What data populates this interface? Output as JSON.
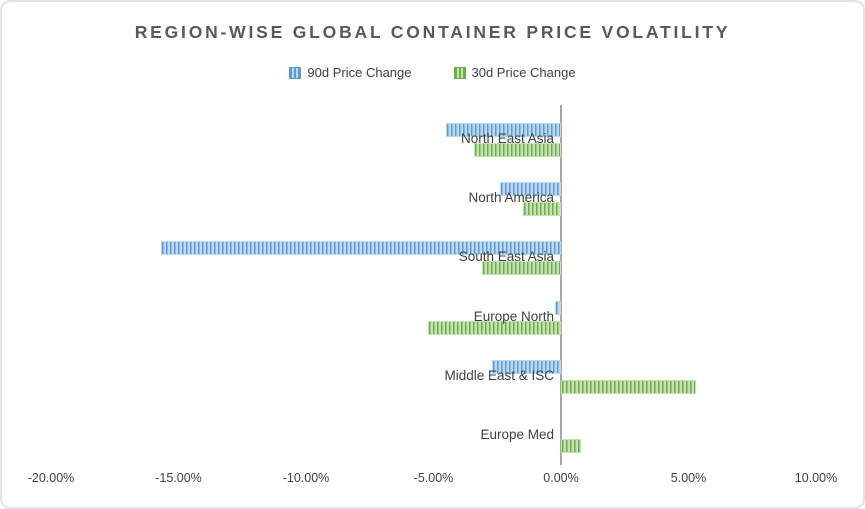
{
  "title": "REGION-WISE GLOBAL CONTAINER PRICE VOLATILITY",
  "legend": [
    {
      "label": "90d Price Change",
      "fill": "#BDD7EE",
      "stripe": "#5B9BD5"
    },
    {
      "label": "30d Price Change",
      "fill": "#C5E0B4",
      "stripe": "#70AD47"
    }
  ],
  "chart_data": {
    "type": "bar",
    "orientation": "horizontal",
    "title": "REGION-WISE GLOBAL CONTAINER PRICE VOLATILITY",
    "categories": [
      "North East Asia",
      "North America",
      "South East Asia",
      "Europe North",
      "Middle East & ISC",
      "Europe Med"
    ],
    "series": [
      {
        "name": "90d Price Change",
        "values": [
          -4.5,
          -2.4,
          -15.7,
          -0.25,
          -2.7,
          0.0
        ],
        "fill": "#BDD7EE",
        "stripe": "#5B9BD5"
      },
      {
        "name": "30d Price Change",
        "values": [
          -3.4,
          -1.5,
          -3.1,
          -5.2,
          5.3,
          0.8
        ],
        "fill": "#C5E0B4",
        "stripe": "#70AD47"
      }
    ],
    "unit": "%",
    "xlim": [
      -20,
      10
    ],
    "x_tick_values": [
      -20,
      -15,
      -10,
      -5,
      0,
      5,
      10
    ],
    "x_tick_labels": [
      "-20.00%",
      "-15.00%",
      "-10.00%",
      "-5.00%",
      "0.00%",
      "5.00%",
      "10.00%"
    ],
    "legend_position": "top",
    "grid": false,
    "value_axis_line_color": "#A6A6A6"
  }
}
